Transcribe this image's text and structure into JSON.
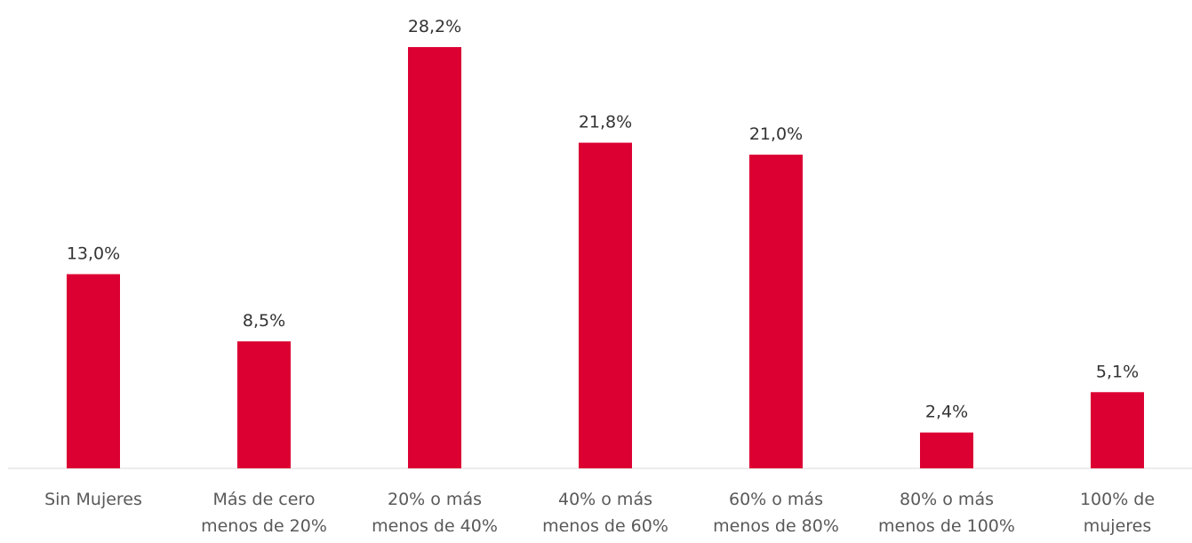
{
  "chart_data": {
    "type": "bar",
    "categories": [
      "Sin Mujeres",
      "Más de cero\nmenos de 20%",
      "20% o más\nmenos de 40%",
      "40% o más\nmenos de 60%",
      "60% o más\nmenos de 80%",
      "80% o más\nmenos de 100%",
      "100% de\nmujeres"
    ],
    "values": [
      13.0,
      8.5,
      28.2,
      21.8,
      21.0,
      2.4,
      5.1
    ],
    "value_labels": [
      "13,0%",
      "8,5%",
      "28,2%",
      "21,8%",
      "21,0%",
      "2,4%",
      "5,1%"
    ],
    "color": "#dc0032"
  }
}
